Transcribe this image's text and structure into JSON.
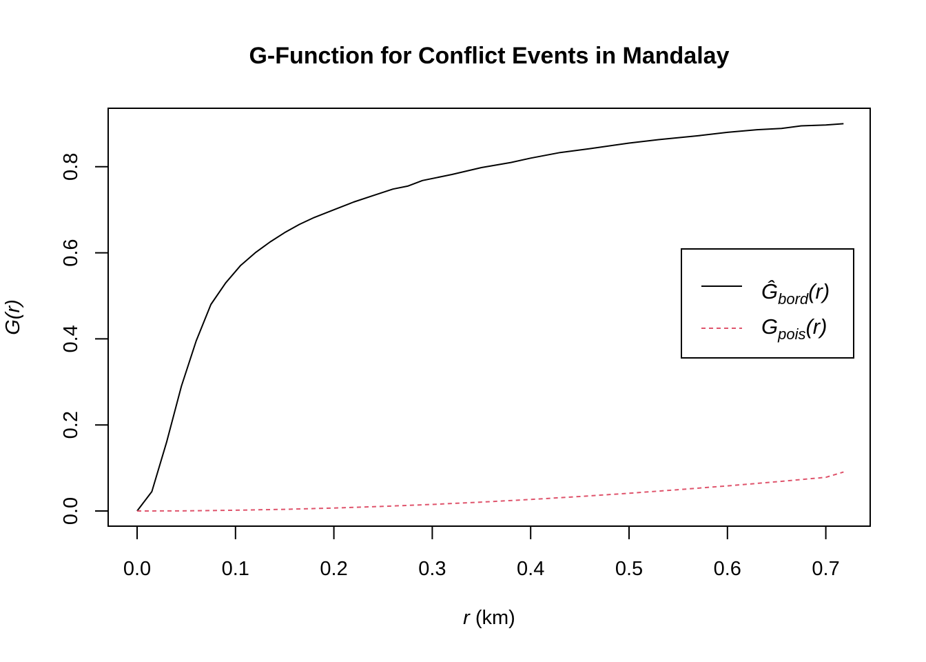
{
  "chart_data": {
    "type": "line",
    "title": "G-Function for Conflict Events in Mandalay",
    "xlabel_var": "r",
    "xlabel_unit": "(km)",
    "ylabel_fn": "G",
    "ylabel_arg": "(r)",
    "xlim": [
      0,
      0.72
    ],
    "ylim": [
      0,
      0.9
    ],
    "x_ticks": [
      "0.0",
      "0.1",
      "0.2",
      "0.3",
      "0.4",
      "0.5",
      "0.6",
      "0.7"
    ],
    "y_ticks": [
      "0.0",
      "0.2",
      "0.4",
      "0.6",
      "0.8"
    ],
    "legend_position": "right",
    "series": [
      {
        "name": "Ĝ_bord(r)",
        "legend_main": "Ĝ",
        "legend_sub": "bord",
        "legend_arg": "(r)",
        "color": "#000000",
        "dash": "solid",
        "x": [
          0,
          0.015,
          0.03,
          0.045,
          0.06,
          0.075,
          0.09,
          0.105,
          0.12,
          0.135,
          0.15,
          0.165,
          0.18,
          0.2,
          0.22,
          0.24,
          0.26,
          0.275,
          0.29,
          0.32,
          0.35,
          0.38,
          0.4,
          0.43,
          0.46,
          0.5,
          0.53,
          0.57,
          0.6,
          0.63,
          0.655,
          0.675,
          0.7,
          0.718
        ],
        "y": [
          0,
          0.045,
          0.16,
          0.29,
          0.395,
          0.48,
          0.53,
          0.57,
          0.6,
          0.625,
          0.647,
          0.666,
          0.682,
          0.7,
          0.718,
          0.733,
          0.748,
          0.755,
          0.768,
          0.782,
          0.798,
          0.81,
          0.82,
          0.833,
          0.842,
          0.855,
          0.863,
          0.872,
          0.88,
          0.886,
          0.889,
          0.895,
          0.897,
          0.9
        ]
      },
      {
        "name": "G_pois(r)",
        "legend_main": "G",
        "legend_sub": "pois",
        "legend_arg": "(r)",
        "color": "#df536b",
        "dash": "dashed",
        "x": [
          0,
          0.05,
          0.1,
          0.15,
          0.2,
          0.25,
          0.3,
          0.35,
          0.4,
          0.45,
          0.5,
          0.55,
          0.6,
          0.65,
          0.7,
          0.718
        ],
        "y": [
          0,
          0.0004,
          0.0017,
          0.0039,
          0.0069,
          0.0107,
          0.0153,
          0.0207,
          0.0268,
          0.0336,
          0.0412,
          0.0495,
          0.0584,
          0.068,
          0.0782,
          0.0905
        ]
      }
    ]
  }
}
